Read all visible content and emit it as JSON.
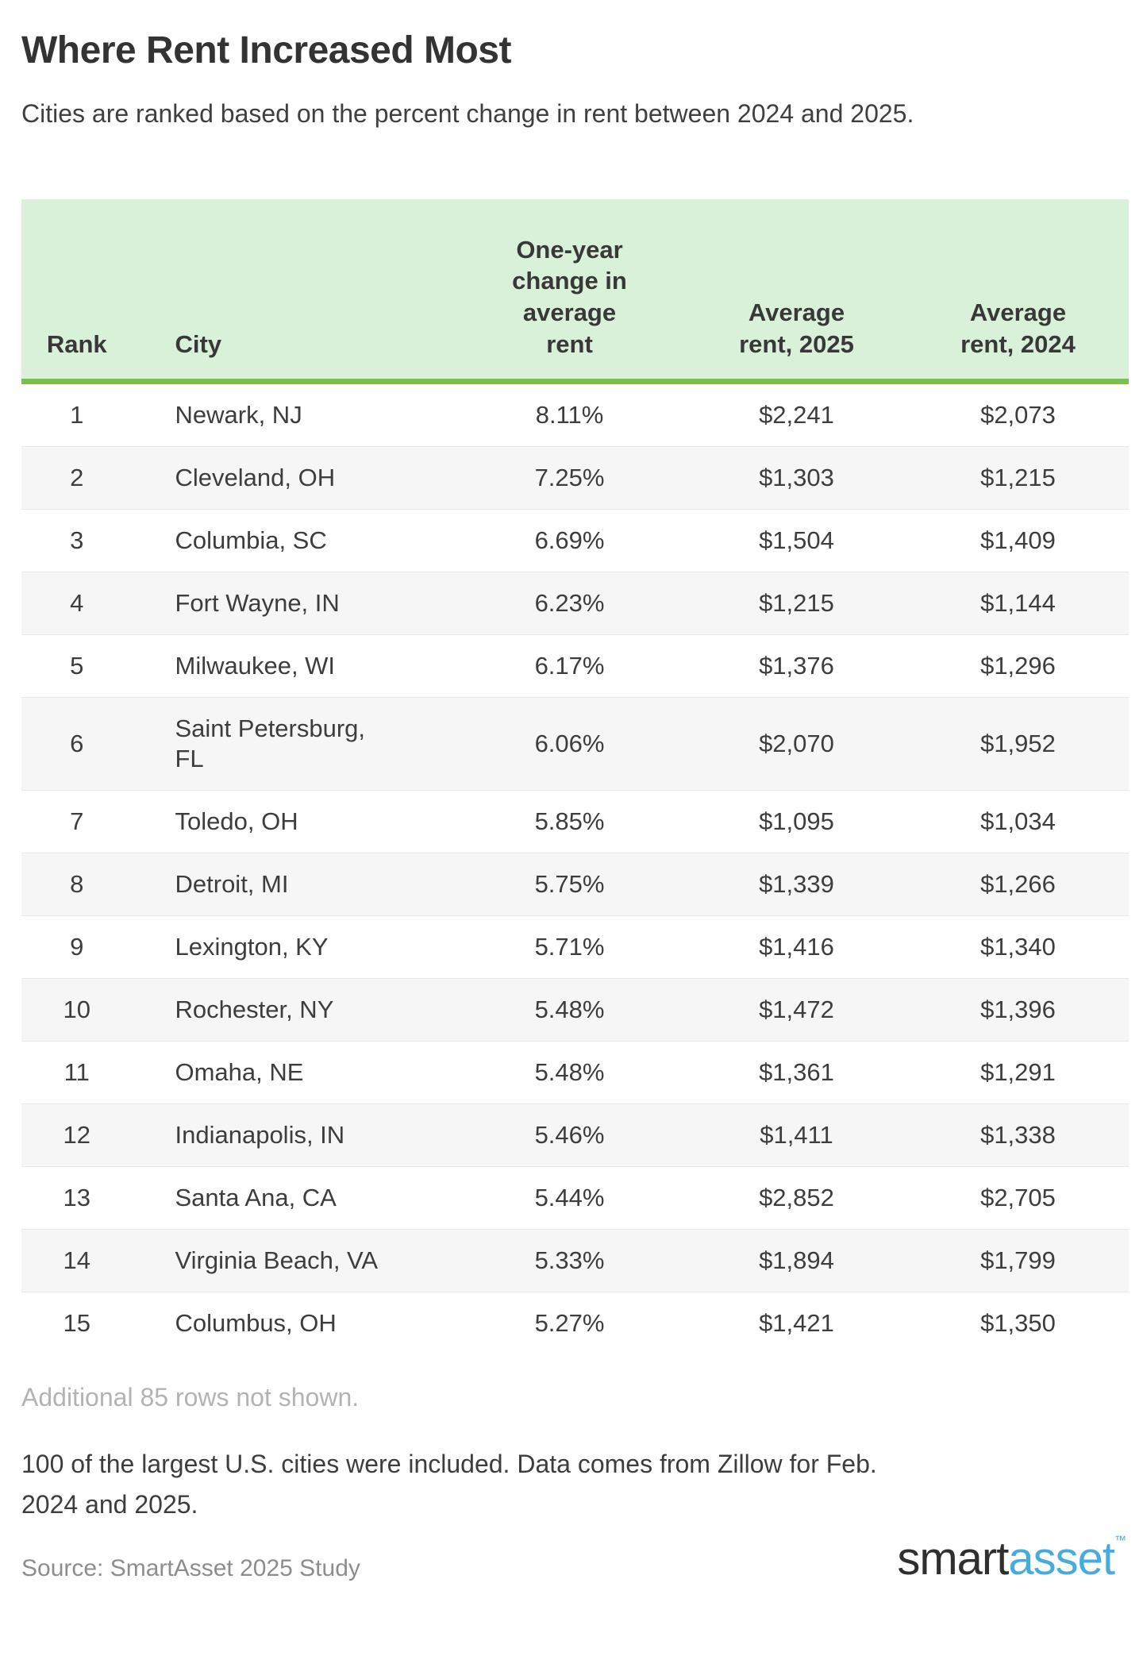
{
  "page": {
    "title": "Where Rent Increased Most",
    "subtitle": "Cities are ranked based on the percent change in rent between 2024 and 2025."
  },
  "table": {
    "columns": [
      {
        "label": "Rank"
      },
      {
        "label": "City"
      },
      {
        "label": "One-year change in average rent"
      },
      {
        "label": "Average rent, 2025"
      },
      {
        "label": "Average rent, 2024"
      }
    ],
    "rows": [
      {
        "rank": "1",
        "city": "Newark, NJ",
        "change": "8.11%",
        "rent2025": "$2,241",
        "rent2024": "$2,073"
      },
      {
        "rank": "2",
        "city": "Cleveland, OH",
        "change": "7.25%",
        "rent2025": "$1,303",
        "rent2024": "$1,215"
      },
      {
        "rank": "3",
        "city": "Columbia, SC",
        "change": "6.69%",
        "rent2025": "$1,504",
        "rent2024": "$1,409"
      },
      {
        "rank": "4",
        "city": "Fort Wayne, IN",
        "change": "6.23%",
        "rent2025": "$1,215",
        "rent2024": "$1,144"
      },
      {
        "rank": "5",
        "city": "Milwaukee, WI",
        "change": "6.17%",
        "rent2025": "$1,376",
        "rent2024": "$1,296"
      },
      {
        "rank": "6",
        "city": "Saint Petersburg, FL",
        "change": "6.06%",
        "rent2025": "$2,070",
        "rent2024": "$1,952"
      },
      {
        "rank": "7",
        "city": "Toledo, OH",
        "change": "5.85%",
        "rent2025": "$1,095",
        "rent2024": "$1,034"
      },
      {
        "rank": "8",
        "city": "Detroit, MI",
        "change": "5.75%",
        "rent2025": "$1,339",
        "rent2024": "$1,266"
      },
      {
        "rank": "9",
        "city": "Lexington, KY",
        "change": "5.71%",
        "rent2025": "$1,416",
        "rent2024": "$1,340"
      },
      {
        "rank": "10",
        "city": "Rochester, NY",
        "change": "5.48%",
        "rent2025": "$1,472",
        "rent2024": "$1,396"
      },
      {
        "rank": "11",
        "city": "Omaha, NE",
        "change": "5.48%",
        "rent2025": "$1,361",
        "rent2024": "$1,291"
      },
      {
        "rank": "12",
        "city": "Indianapolis, IN",
        "change": "5.46%",
        "rent2025": "$1,411",
        "rent2024": "$1,338"
      },
      {
        "rank": "13",
        "city": "Santa Ana, CA",
        "change": "5.44%",
        "rent2025": "$2,852",
        "rent2024": "$2,705"
      },
      {
        "rank": "14",
        "city": "Virginia Beach, VA",
        "change": "5.33%",
        "rent2025": "$1,894",
        "rent2024": "$1,799"
      },
      {
        "rank": "15",
        "city": "Columbus, OH",
        "change": "5.27%",
        "rent2025": "$1,421",
        "rent2024": "$1,350"
      }
    ],
    "additional_rows_note": "Additional 85 rows not shown."
  },
  "footer": {
    "methodology": "100 of the largest U.S. cities were included. Data comes from Zillow for Feb. 2024 and 2025.",
    "source": "Source: SmartAsset 2025 Study",
    "logo": {
      "smart": "smart",
      "asset": "asset",
      "tm": "™"
    }
  },
  "colors": {
    "header_bg": "#d8f1d8",
    "header_border_green": "#79c14b",
    "row_stripe": "#f6f6f6",
    "row_separator": "#e8e8e8",
    "text_dark": "#3d3d3d",
    "muted_note": "#b3b3b3",
    "source_gray": "#8d8d8d",
    "logo_dark": "#2f2f2f",
    "logo_blue": "#47abdf"
  },
  "chart_data": {
    "type": "table",
    "title": "Where Rent Increased Most",
    "subtitle": "Cities are ranked based on the percent change in rent between 2024 and 2025.",
    "columns": [
      "Rank",
      "City",
      "One-year change in average rent",
      "Average rent, 2025",
      "Average rent, 2024"
    ],
    "rows": [
      [
        1,
        "Newark, NJ",
        8.11,
        2241,
        2073
      ],
      [
        2,
        "Cleveland, OH",
        7.25,
        1303,
        1215
      ],
      [
        3,
        "Columbia, SC",
        6.69,
        1504,
        1409
      ],
      [
        4,
        "Fort Wayne, IN",
        6.23,
        1215,
        1144
      ],
      [
        5,
        "Milwaukee, WI",
        6.17,
        1376,
        1296
      ],
      [
        6,
        "Saint Petersburg, FL",
        6.06,
        2070,
        1952
      ],
      [
        7,
        "Toledo, OH",
        5.85,
        1095,
        1034
      ],
      [
        8,
        "Detroit, MI",
        5.75,
        1339,
        1266
      ],
      [
        9,
        "Lexington, KY",
        5.71,
        1416,
        1340
      ],
      [
        10,
        "Rochester, NY",
        5.48,
        1472,
        1396
      ],
      [
        11,
        "Omaha, NE",
        5.48,
        1361,
        1291
      ],
      [
        12,
        "Indianapolis, IN",
        5.46,
        1411,
        1338
      ],
      [
        13,
        "Santa Ana, CA",
        5.44,
        2852,
        2705
      ],
      [
        14,
        "Virginia Beach, VA",
        5.33,
        1894,
        1799
      ],
      [
        15,
        "Columbus, OH",
        5.27,
        1421,
        1350
      ]
    ],
    "units": {
      "change": "percent",
      "rent": "USD per month"
    },
    "notes": [
      "Additional 85 rows not shown.",
      "100 of the largest U.S. cities were included. Data comes from Zillow for Feb. 2024 and 2025.",
      "Source: SmartAsset 2025 Study"
    ]
  }
}
